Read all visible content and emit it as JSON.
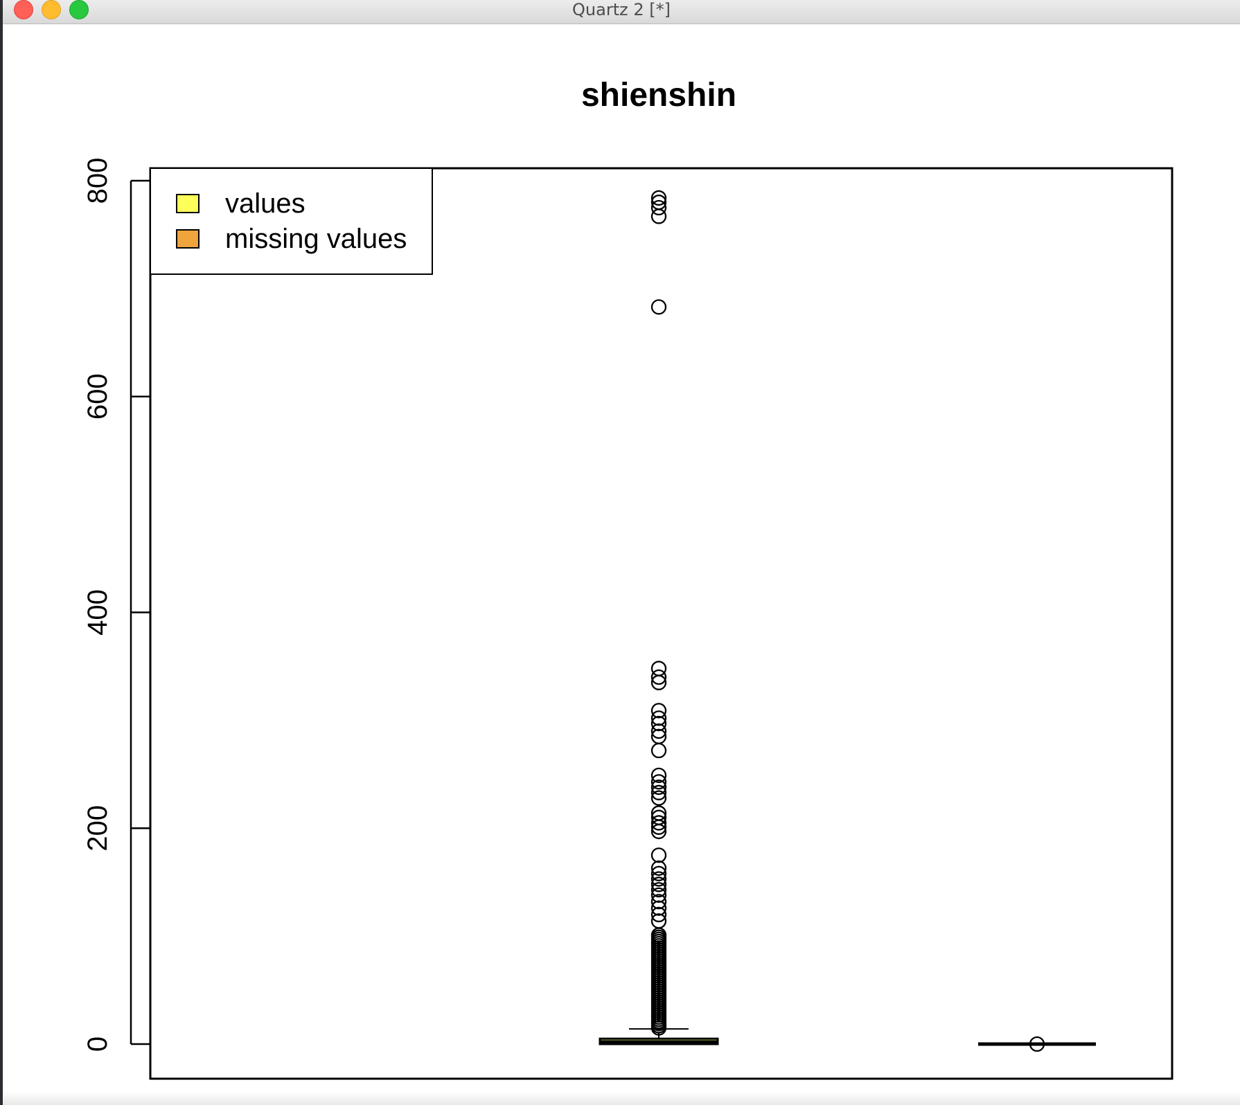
{
  "window": {
    "title": "Quartz 2 [*]"
  },
  "chart_data": {
    "type": "box",
    "title": "shienshin",
    "ylim": [
      -30,
      830
    ],
    "yticks": [
      "0",
      "200",
      "400",
      "600",
      "800"
    ],
    "ytick_values": [
      0,
      200,
      400,
      600,
      800
    ],
    "legend": {
      "position": "top-left",
      "items": [
        {
          "label": "values",
          "color": "#ffff5a"
        },
        {
          "label": "missing values",
          "color": "#f0a43c"
        }
      ]
    },
    "boxes": [
      {
        "name": "values",
        "fill": "#ffff5a",
        "position": 2,
        "q1": 0,
        "median": 2,
        "q3": 5,
        "whisker_low": 0,
        "whisker_high": 14,
        "outliers": [
          15,
          17,
          19,
          21,
          23,
          25,
          27,
          29,
          31,
          33,
          35,
          37,
          39,
          41,
          43,
          45,
          47,
          49,
          51,
          53,
          55,
          57,
          59,
          61,
          63,
          65,
          67,
          69,
          71,
          73,
          75,
          77,
          79,
          81,
          83,
          85,
          87,
          89,
          91,
          93,
          95,
          97,
          99,
          101,
          114,
          120,
          126,
          132,
          138,
          143,
          148,
          153,
          158,
          163,
          175,
          197,
          201,
          205,
          210,
          214,
          228,
          233,
          238,
          243,
          249,
          272,
          285,
          290,
          297,
          302,
          309,
          335,
          340,
          348,
          683,
          767,
          775,
          780,
          784
        ]
      },
      {
        "name": "missing values",
        "fill": "#f0a43c",
        "position": 3,
        "q1": 0,
        "median": 0,
        "q3": 0,
        "whisker_low": 0,
        "whisker_high": 0,
        "outliers": [
          0
        ]
      }
    ]
  }
}
